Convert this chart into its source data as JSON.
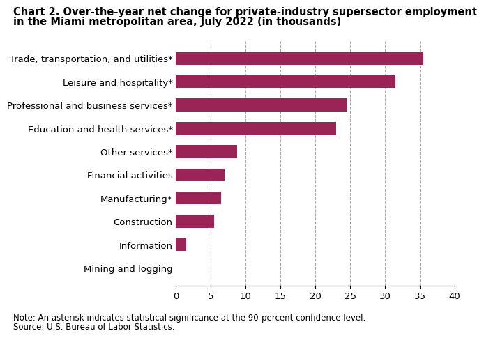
{
  "title_line1": "Chart 2. Over-the-year net change for private-industry supersector employment",
  "title_line2": "in the Miami metropolitan area, July 2022 (in thousands)",
  "categories": [
    "Mining and logging",
    "Information",
    "Construction",
    "Manufacturing*",
    "Financial activities",
    "Other services*",
    "Education and health services*",
    "Professional and business services*",
    "Leisure and hospitality*",
    "Trade, transportation, and utilities*"
  ],
  "values": [
    0.0,
    1.5,
    5.5,
    6.5,
    7.0,
    8.8,
    23.0,
    24.5,
    31.5,
    35.5
  ],
  "bar_color": "#9b2457",
  "xlim": [
    0,
    40
  ],
  "xticks": [
    0,
    5,
    10,
    15,
    20,
    25,
    30,
    35,
    40
  ],
  "note": "Note: An asterisk indicates statistical significance at the 90-percent confidence level.",
  "source": "Source: U.S. Bureau of Labor Statistics.",
  "title_fontsize": 10.5,
  "label_fontsize": 9.5,
  "tick_fontsize": 9.5,
  "note_fontsize": 8.5,
  "background_color": "#ffffff"
}
